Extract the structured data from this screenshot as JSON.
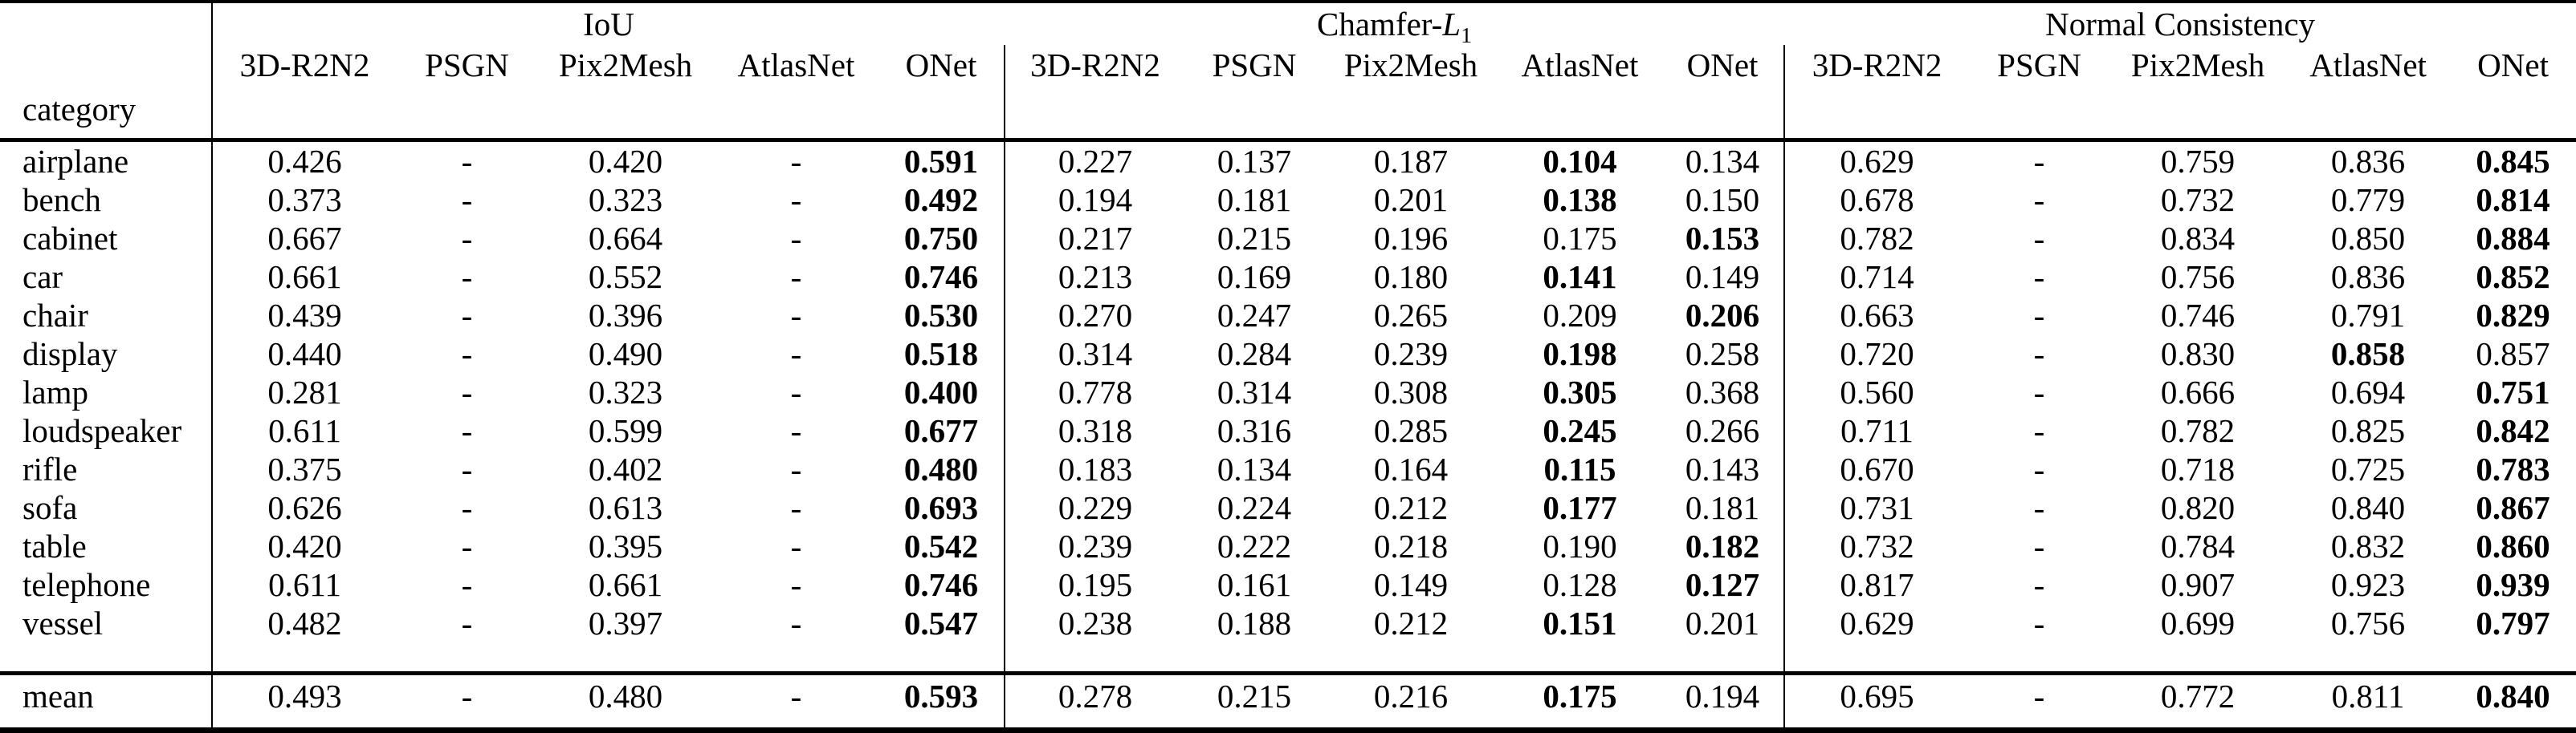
{
  "table": {
    "row_header": "category",
    "groups": [
      {
        "label": "IoU",
        "methods": [
          "3D-R2N2",
          "PSGN",
          "Pix2Mesh",
          "AtlasNet",
          "ONet"
        ]
      },
      {
        "label_prefix": "Chamfer-",
        "label_math": "L",
        "label_sub": "1",
        "methods": [
          "3D-R2N2",
          "PSGN",
          "Pix2Mesh",
          "AtlasNet",
          "ONet"
        ]
      },
      {
        "label": "Normal Consistency",
        "methods": [
          "3D-R2N2",
          "PSGN",
          "Pix2Mesh",
          "AtlasNet",
          "ONet"
        ]
      }
    ],
    "rows": [
      {
        "category": "airplane",
        "values": [
          "0.426",
          "-",
          "0.420",
          "-",
          "0.591",
          "0.227",
          "0.137",
          "0.187",
          "0.104",
          "0.134",
          "0.629",
          "-",
          "0.759",
          "0.836",
          "0.845"
        ],
        "bold": [
          4,
          8,
          14
        ]
      },
      {
        "category": "bench",
        "values": [
          "0.373",
          "-",
          "0.323",
          "-",
          "0.492",
          "0.194",
          "0.181",
          "0.201",
          "0.138",
          "0.150",
          "0.678",
          "-",
          "0.732",
          "0.779",
          "0.814"
        ],
        "bold": [
          4,
          8,
          14
        ]
      },
      {
        "category": "cabinet",
        "values": [
          "0.667",
          "-",
          "0.664",
          "-",
          "0.750",
          "0.217",
          "0.215",
          "0.196",
          "0.175",
          "0.153",
          "0.782",
          "-",
          "0.834",
          "0.850",
          "0.884"
        ],
        "bold": [
          4,
          9,
          14
        ]
      },
      {
        "category": "car",
        "values": [
          "0.661",
          "-",
          "0.552",
          "-",
          "0.746",
          "0.213",
          "0.169",
          "0.180",
          "0.141",
          "0.149",
          "0.714",
          "-",
          "0.756",
          "0.836",
          "0.852"
        ],
        "bold": [
          4,
          8,
          14
        ]
      },
      {
        "category": "chair",
        "values": [
          "0.439",
          "-",
          "0.396",
          "-",
          "0.530",
          "0.270",
          "0.247",
          "0.265",
          "0.209",
          "0.206",
          "0.663",
          "-",
          "0.746",
          "0.791",
          "0.829"
        ],
        "bold": [
          4,
          9,
          14
        ]
      },
      {
        "category": "display",
        "values": [
          "0.440",
          "-",
          "0.490",
          "-",
          "0.518",
          "0.314",
          "0.284",
          "0.239",
          "0.198",
          "0.258",
          "0.720",
          "-",
          "0.830",
          "0.858",
          "0.857"
        ],
        "bold": [
          4,
          8,
          13
        ]
      },
      {
        "category": "lamp",
        "values": [
          "0.281",
          "-",
          "0.323",
          "-",
          "0.400",
          "0.778",
          "0.314",
          "0.308",
          "0.305",
          "0.368",
          "0.560",
          "-",
          "0.666",
          "0.694",
          "0.751"
        ],
        "bold": [
          4,
          8,
          14
        ]
      },
      {
        "category": "loudspeaker",
        "values": [
          "0.611",
          "-",
          "0.599",
          "-",
          "0.677",
          "0.318",
          "0.316",
          "0.285",
          "0.245",
          "0.266",
          "0.711",
          "-",
          "0.782",
          "0.825",
          "0.842"
        ],
        "bold": [
          4,
          8,
          14
        ]
      },
      {
        "category": "rifle",
        "values": [
          "0.375",
          "-",
          "0.402",
          "-",
          "0.480",
          "0.183",
          "0.134",
          "0.164",
          "0.115",
          "0.143",
          "0.670",
          "-",
          "0.718",
          "0.725",
          "0.783"
        ],
        "bold": [
          4,
          8,
          14
        ]
      },
      {
        "category": "sofa",
        "values": [
          "0.626",
          "-",
          "0.613",
          "-",
          "0.693",
          "0.229",
          "0.224",
          "0.212",
          "0.177",
          "0.181",
          "0.731",
          "-",
          "0.820",
          "0.840",
          "0.867"
        ],
        "bold": [
          4,
          8,
          14
        ]
      },
      {
        "category": "table",
        "values": [
          "0.420",
          "-",
          "0.395",
          "-",
          "0.542",
          "0.239",
          "0.222",
          "0.218",
          "0.190",
          "0.182",
          "0.732",
          "-",
          "0.784",
          "0.832",
          "0.860"
        ],
        "bold": [
          4,
          9,
          14
        ]
      },
      {
        "category": "telephone",
        "values": [
          "0.611",
          "-",
          "0.661",
          "-",
          "0.746",
          "0.195",
          "0.161",
          "0.149",
          "0.128",
          "0.127",
          "0.817",
          "-",
          "0.907",
          "0.923",
          "0.939"
        ],
        "bold": [
          4,
          9,
          14
        ]
      },
      {
        "category": "vessel",
        "values": [
          "0.482",
          "-",
          "0.397",
          "-",
          "0.547",
          "0.238",
          "0.188",
          "0.212",
          "0.151",
          "0.201",
          "0.629",
          "-",
          "0.699",
          "0.756",
          "0.797"
        ],
        "bold": [
          4,
          8,
          14
        ]
      }
    ],
    "mean": {
      "category": "mean",
      "values": [
        "0.493",
        "-",
        "0.480",
        "-",
        "0.593",
        "0.278",
        "0.215",
        "0.216",
        "0.175",
        "0.194",
        "0.695",
        "-",
        "0.772",
        "0.811",
        "0.840"
      ],
      "bold": [
        4,
        8,
        14
      ]
    }
  }
}
